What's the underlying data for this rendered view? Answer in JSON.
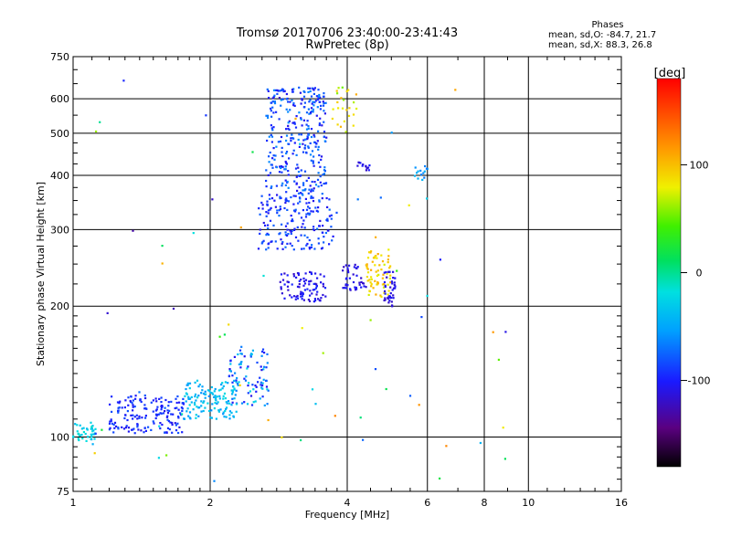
{
  "header": {
    "title_line1": "Tromsø 20170706 23:40:00-23:41:43",
    "title_line2": "RwPretec (8p)"
  },
  "stats": {
    "heading": "Phases",
    "line_o": "mean, sd,O:  -84.7, 21.7",
    "line_x": "mean, sd,X:  88.3, 26.8"
  },
  "chart_data": {
    "type": "scatter",
    "xlabel": "Frequency [MHz]",
    "ylabel": "Stationary phase Virtual Height [km]",
    "x_scale": "log",
    "y_scale": "log",
    "xlim": [
      1,
      16
    ],
    "ylim": [
      75,
      750
    ],
    "x_ticks": [
      1,
      2,
      4,
      6,
      8,
      10,
      16
    ],
    "x_tick_labels": [
      "1",
      "2",
      "4",
      "6",
      "8",
      "10",
      "16"
    ],
    "y_ticks": [
      75,
      100,
      200,
      300,
      400,
      500,
      600,
      750
    ],
    "y_tick_labels": [
      "75",
      "100",
      "200",
      "300",
      "400",
      "500",
      "600",
      "750"
    ],
    "grid": true,
    "colorbar": {
      "label": "[deg]",
      "range": [
        -180,
        180
      ],
      "ticks": [
        100,
        0,
        -100
      ],
      "tick_labels": [
        "100",
        "0",
        "-100"
      ]
    },
    "clusters": [
      {
        "name": "low-O-trace",
        "x": [
          1.0,
          1.12
        ],
        "y": [
          97,
          108
        ],
        "n": 40,
        "phase": [
          -40,
          -10
        ]
      },
      {
        "name": "F1-trace-a",
        "x": [
          1.2,
          1.75
        ],
        "y": [
          102,
          125
        ],
        "n": 170,
        "phase": [
          -110,
          -80
        ]
      },
      {
        "name": "F1-trace-b",
        "x": [
          1.75,
          2.3
        ],
        "y": [
          110,
          135
        ],
        "n": 130,
        "phase": [
          -60,
          -20
        ]
      },
      {
        "name": "F1-trace-c",
        "x": [
          2.2,
          2.7
        ],
        "y": [
          118,
          160
        ],
        "n": 90,
        "phase": [
          -110,
          -20
        ]
      },
      {
        "name": "F2-lower",
        "x": [
          2.55,
          3.7
        ],
        "y": [
          270,
          360
        ],
        "n": 180,
        "phase": [
          -110,
          -70
        ]
      },
      {
        "name": "F2-upper",
        "x": [
          2.65,
          3.6
        ],
        "y": [
          360,
          640
        ],
        "n": 320,
        "phase": [
          -110,
          -60
        ]
      },
      {
        "name": "F2-low-edge",
        "x": [
          2.85,
          3.6
        ],
        "y": [
          205,
          240
        ],
        "n": 90,
        "phase": [
          -120,
          -95
        ]
      },
      {
        "name": "X-cusp",
        "x": [
          3.9,
          4.4
        ],
        "y": [
          215,
          250
        ],
        "n": 40,
        "phase": [
          -120,
          -100
        ]
      },
      {
        "name": "X-trace",
        "x": [
          4.4,
          5.0
        ],
        "y": [
          210,
          270
        ],
        "n": 70,
        "phase": [
          70,
          110
        ]
      },
      {
        "name": "X-trace-b",
        "x": [
          4.8,
          5.1
        ],
        "y": [
          200,
          240
        ],
        "n": 40,
        "phase": [
          -120,
          -100
        ]
      },
      {
        "name": "mid-blob",
        "x": [
          4.2,
          4.5
        ],
        "y": [
          410,
          430
        ],
        "n": 14,
        "phase": [
          -120,
          -100
        ]
      },
      {
        "name": "mid-blob-b",
        "x": [
          5.6,
          6.0
        ],
        "y": [
          390,
          420
        ],
        "n": 14,
        "phase": [
          -70,
          -40
        ]
      },
      {
        "name": "top-spots",
        "x": [
          3.7,
          4.2
        ],
        "y": [
          500,
          640
        ],
        "n": 25,
        "phase": [
          50,
          110
        ]
      },
      {
        "name": "scatter",
        "x": [
          1.0,
          10.0
        ],
        "y": [
          78,
          700
        ],
        "n": 70,
        "phase": [
          -130,
          130
        ]
      }
    ]
  }
}
